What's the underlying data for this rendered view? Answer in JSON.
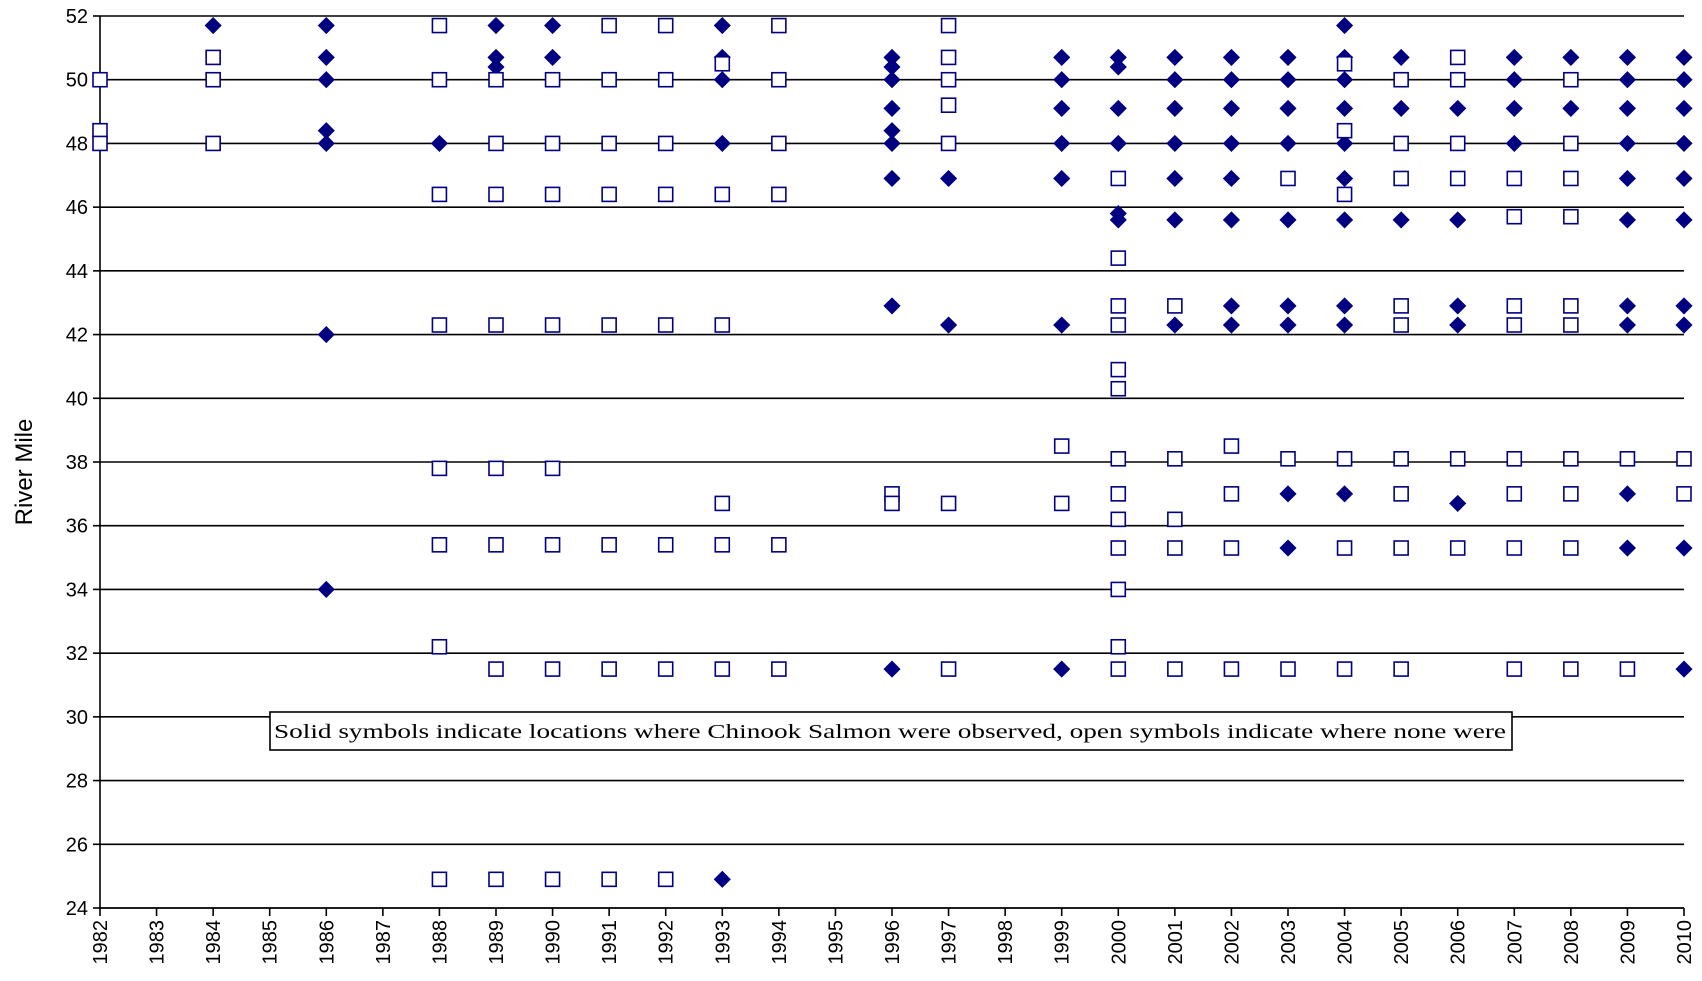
{
  "chart_data": {
    "type": "scatter",
    "ylabel": "River Mile",
    "xlabel": "",
    "ylim": [
      24,
      52
    ],
    "y_ticks": [
      24,
      26,
      28,
      30,
      32,
      34,
      36,
      38,
      40,
      42,
      44,
      46,
      48,
      50,
      52
    ],
    "x_ticks": [
      1982,
      1983,
      1984,
      1985,
      1986,
      1987,
      1988,
      1989,
      1990,
      1991,
      1992,
      1993,
      1994,
      1995,
      1996,
      1997,
      1998,
      1999,
      2000,
      2001,
      2002,
      2003,
      2004,
      2005,
      2006,
      2007,
      2008,
      2009,
      2010
    ],
    "horizontal_grid": true,
    "annotation": "Solid symbols indicate locations where Chinook Salmon were observed, open symbols indicate where none were",
    "colors": {
      "marker": "#000080",
      "axis": "#000000",
      "background": "#ffffff"
    },
    "series": [
      {
        "marker": "filled-diamond",
        "points": [
          [
            1984,
            51.7
          ],
          [
            1986,
            51.7
          ],
          [
            1986,
            50.7
          ],
          [
            1986,
            50.0
          ],
          [
            1986,
            48.4
          ],
          [
            1986,
            48.0
          ],
          [
            1986,
            42.0
          ],
          [
            1986,
            34.0
          ],
          [
            1988,
            48.0
          ],
          [
            1989,
            51.7
          ],
          [
            1989,
            50.7
          ],
          [
            1989,
            50.4
          ],
          [
            1990,
            51.7
          ],
          [
            1990,
            50.7
          ],
          [
            1993,
            51.7
          ],
          [
            1993,
            50.7
          ],
          [
            1993,
            50.0
          ],
          [
            1993,
            48.0
          ],
          [
            1993,
            24.9
          ],
          [
            1996,
            50.7
          ],
          [
            1996,
            50.4
          ],
          [
            1996,
            50.0
          ],
          [
            1996,
            49.1
          ],
          [
            1996,
            48.4
          ],
          [
            1996,
            48.0
          ],
          [
            1996,
            46.9
          ],
          [
            1996,
            42.9
          ],
          [
            1996,
            31.5
          ],
          [
            1997,
            46.9
          ],
          [
            1997,
            42.3
          ],
          [
            1999,
            50.7
          ],
          [
            1999,
            50.0
          ],
          [
            1999,
            49.1
          ],
          [
            1999,
            48.0
          ],
          [
            1999,
            46.9
          ],
          [
            1999,
            42.3
          ],
          [
            1999,
            31.5
          ],
          [
            2000,
            50.7
          ],
          [
            2000,
            50.4
          ],
          [
            2000,
            49.1
          ],
          [
            2000,
            48.0
          ],
          [
            2000,
            45.8
          ],
          [
            2000,
            45.6
          ],
          [
            2001,
            50.7
          ],
          [
            2001,
            50.0
          ],
          [
            2001,
            49.1
          ],
          [
            2001,
            48.0
          ],
          [
            2001,
            46.9
          ],
          [
            2001,
            45.6
          ],
          [
            2001,
            42.3
          ],
          [
            2002,
            50.7
          ],
          [
            2002,
            50.0
          ],
          [
            2002,
            49.1
          ],
          [
            2002,
            48.0
          ],
          [
            2002,
            46.9
          ],
          [
            2002,
            45.6
          ],
          [
            2002,
            42.9
          ],
          [
            2002,
            42.3
          ],
          [
            2003,
            50.7
          ],
          [
            2003,
            50.0
          ],
          [
            2003,
            49.1
          ],
          [
            2003,
            48.0
          ],
          [
            2003,
            45.6
          ],
          [
            2003,
            42.9
          ],
          [
            2003,
            42.3
          ],
          [
            2003,
            37.0
          ],
          [
            2003,
            35.3
          ],
          [
            2004,
            51.7
          ],
          [
            2004,
            50.7
          ],
          [
            2004,
            50.0
          ],
          [
            2004,
            49.1
          ],
          [
            2004,
            48.0
          ],
          [
            2004,
            46.9
          ],
          [
            2004,
            45.6
          ],
          [
            2004,
            42.9
          ],
          [
            2004,
            42.3
          ],
          [
            2004,
            37.0
          ],
          [
            2005,
            50.7
          ],
          [
            2005,
            49.1
          ],
          [
            2005,
            45.6
          ],
          [
            2006,
            49.1
          ],
          [
            2006,
            45.6
          ],
          [
            2006,
            42.9
          ],
          [
            2006,
            42.3
          ],
          [
            2006,
            36.7
          ],
          [
            2007,
            50.7
          ],
          [
            2007,
            50.0
          ],
          [
            2007,
            49.1
          ],
          [
            2007,
            48.0
          ],
          [
            2008,
            50.7
          ],
          [
            2008,
            49.1
          ],
          [
            2009,
            50.7
          ],
          [
            2009,
            50.0
          ],
          [
            2009,
            49.1
          ],
          [
            2009,
            48.0
          ],
          [
            2009,
            46.9
          ],
          [
            2009,
            45.6
          ],
          [
            2009,
            42.9
          ],
          [
            2009,
            42.3
          ],
          [
            2009,
            37.0
          ],
          [
            2009,
            35.3
          ],
          [
            2010,
            50.7
          ],
          [
            2010,
            50.0
          ],
          [
            2010,
            49.1
          ],
          [
            2010,
            48.0
          ],
          [
            2010,
            46.9
          ],
          [
            2010,
            45.6
          ],
          [
            2010,
            42.9
          ],
          [
            2010,
            42.3
          ],
          [
            2010,
            35.3
          ],
          [
            2010,
            31.5
          ]
        ]
      },
      {
        "marker": "open-square",
        "points": [
          [
            1982,
            50.0
          ],
          [
            1982,
            48.4
          ],
          [
            1982,
            48.0
          ],
          [
            1984,
            50.7
          ],
          [
            1984,
            50.0
          ],
          [
            1984,
            48.0
          ],
          [
            1988,
            51.7
          ],
          [
            1988,
            50.0
          ],
          [
            1988,
            46.4
          ],
          [
            1988,
            42.3
          ],
          [
            1988,
            37.8
          ],
          [
            1988,
            35.4
          ],
          [
            1988,
            32.2
          ],
          [
            1988,
            24.9
          ],
          [
            1989,
            50.0
          ],
          [
            1989,
            48.0
          ],
          [
            1989,
            46.4
          ],
          [
            1989,
            42.3
          ],
          [
            1989,
            37.8
          ],
          [
            1989,
            35.4
          ],
          [
            1989,
            31.5
          ],
          [
            1989,
            24.9
          ],
          [
            1990,
            50.0
          ],
          [
            1990,
            48.0
          ],
          [
            1990,
            46.4
          ],
          [
            1990,
            42.3
          ],
          [
            1990,
            37.8
          ],
          [
            1990,
            35.4
          ],
          [
            1990,
            31.5
          ],
          [
            1990,
            24.9
          ],
          [
            1991,
            51.7
          ],
          [
            1991,
            50.0
          ],
          [
            1991,
            48.0
          ],
          [
            1991,
            46.4
          ],
          [
            1991,
            42.3
          ],
          [
            1991,
            35.4
          ],
          [
            1991,
            31.5
          ],
          [
            1991,
            24.9
          ],
          [
            1992,
            51.7
          ],
          [
            1992,
            50.0
          ],
          [
            1992,
            48.0
          ],
          [
            1992,
            46.4
          ],
          [
            1992,
            42.3
          ],
          [
            1992,
            35.4
          ],
          [
            1992,
            31.5
          ],
          [
            1992,
            24.9
          ],
          [
            1993,
            50.5
          ],
          [
            1993,
            46.4
          ],
          [
            1993,
            42.3
          ],
          [
            1993,
            36.7
          ],
          [
            1993,
            35.4
          ],
          [
            1993,
            31.5
          ],
          [
            1994,
            51.7
          ],
          [
            1994,
            50.0
          ],
          [
            1994,
            48.0
          ],
          [
            1994,
            46.4
          ],
          [
            1994,
            35.4
          ],
          [
            1994,
            31.5
          ],
          [
            1996,
            37.0
          ],
          [
            1996,
            36.7
          ],
          [
            1997,
            51.7
          ],
          [
            1997,
            50.7
          ],
          [
            1997,
            50.0
          ],
          [
            1997,
            49.2
          ],
          [
            1997,
            48.0
          ],
          [
            1997,
            36.7
          ],
          [
            1997,
            31.5
          ],
          [
            1999,
            38.5
          ],
          [
            1999,
            36.7
          ],
          [
            2000,
            46.9
          ],
          [
            2000,
            44.4
          ],
          [
            2000,
            42.9
          ],
          [
            2000,
            42.3
          ],
          [
            2000,
            40.9
          ],
          [
            2000,
            40.3
          ],
          [
            2000,
            38.1
          ],
          [
            2000,
            37.0
          ],
          [
            2000,
            36.2
          ],
          [
            2000,
            35.3
          ],
          [
            2000,
            34.0
          ],
          [
            2000,
            32.2
          ],
          [
            2000,
            31.5
          ],
          [
            2001,
            42.9
          ],
          [
            2001,
            38.1
          ],
          [
            2001,
            36.2
          ],
          [
            2001,
            35.3
          ],
          [
            2001,
            31.5
          ],
          [
            2002,
            38.5
          ],
          [
            2002,
            37.0
          ],
          [
            2002,
            35.3
          ],
          [
            2002,
            31.5
          ],
          [
            2003,
            46.9
          ],
          [
            2003,
            38.1
          ],
          [
            2003,
            31.5
          ],
          [
            2004,
            50.5
          ],
          [
            2004,
            48.4
          ],
          [
            2004,
            46.4
          ],
          [
            2004,
            38.1
          ],
          [
            2004,
            35.3
          ],
          [
            2004,
            31.5
          ],
          [
            2005,
            50.0
          ],
          [
            2005,
            48.0
          ],
          [
            2005,
            46.9
          ],
          [
            2005,
            42.9
          ],
          [
            2005,
            42.3
          ],
          [
            2005,
            38.1
          ],
          [
            2005,
            37.0
          ],
          [
            2005,
            35.3
          ],
          [
            2005,
            31.5
          ],
          [
            2006,
            50.7
          ],
          [
            2006,
            50.0
          ],
          [
            2006,
            48.0
          ],
          [
            2006,
            46.9
          ],
          [
            2006,
            38.1
          ],
          [
            2006,
            35.3
          ],
          [
            2007,
            46.9
          ],
          [
            2007,
            45.7
          ],
          [
            2007,
            42.9
          ],
          [
            2007,
            42.3
          ],
          [
            2007,
            38.1
          ],
          [
            2007,
            37.0
          ],
          [
            2007,
            35.3
          ],
          [
            2007,
            31.5
          ],
          [
            2008,
            50.0
          ],
          [
            2008,
            48.0
          ],
          [
            2008,
            46.9
          ],
          [
            2008,
            45.7
          ],
          [
            2008,
            42.9
          ],
          [
            2008,
            42.3
          ],
          [
            2008,
            38.1
          ],
          [
            2008,
            37.0
          ],
          [
            2008,
            35.3
          ],
          [
            2008,
            31.5
          ],
          [
            2009,
            38.1
          ],
          [
            2009,
            31.5
          ],
          [
            2010,
            38.1
          ],
          [
            2010,
            37.0
          ]
        ]
      }
    ]
  }
}
